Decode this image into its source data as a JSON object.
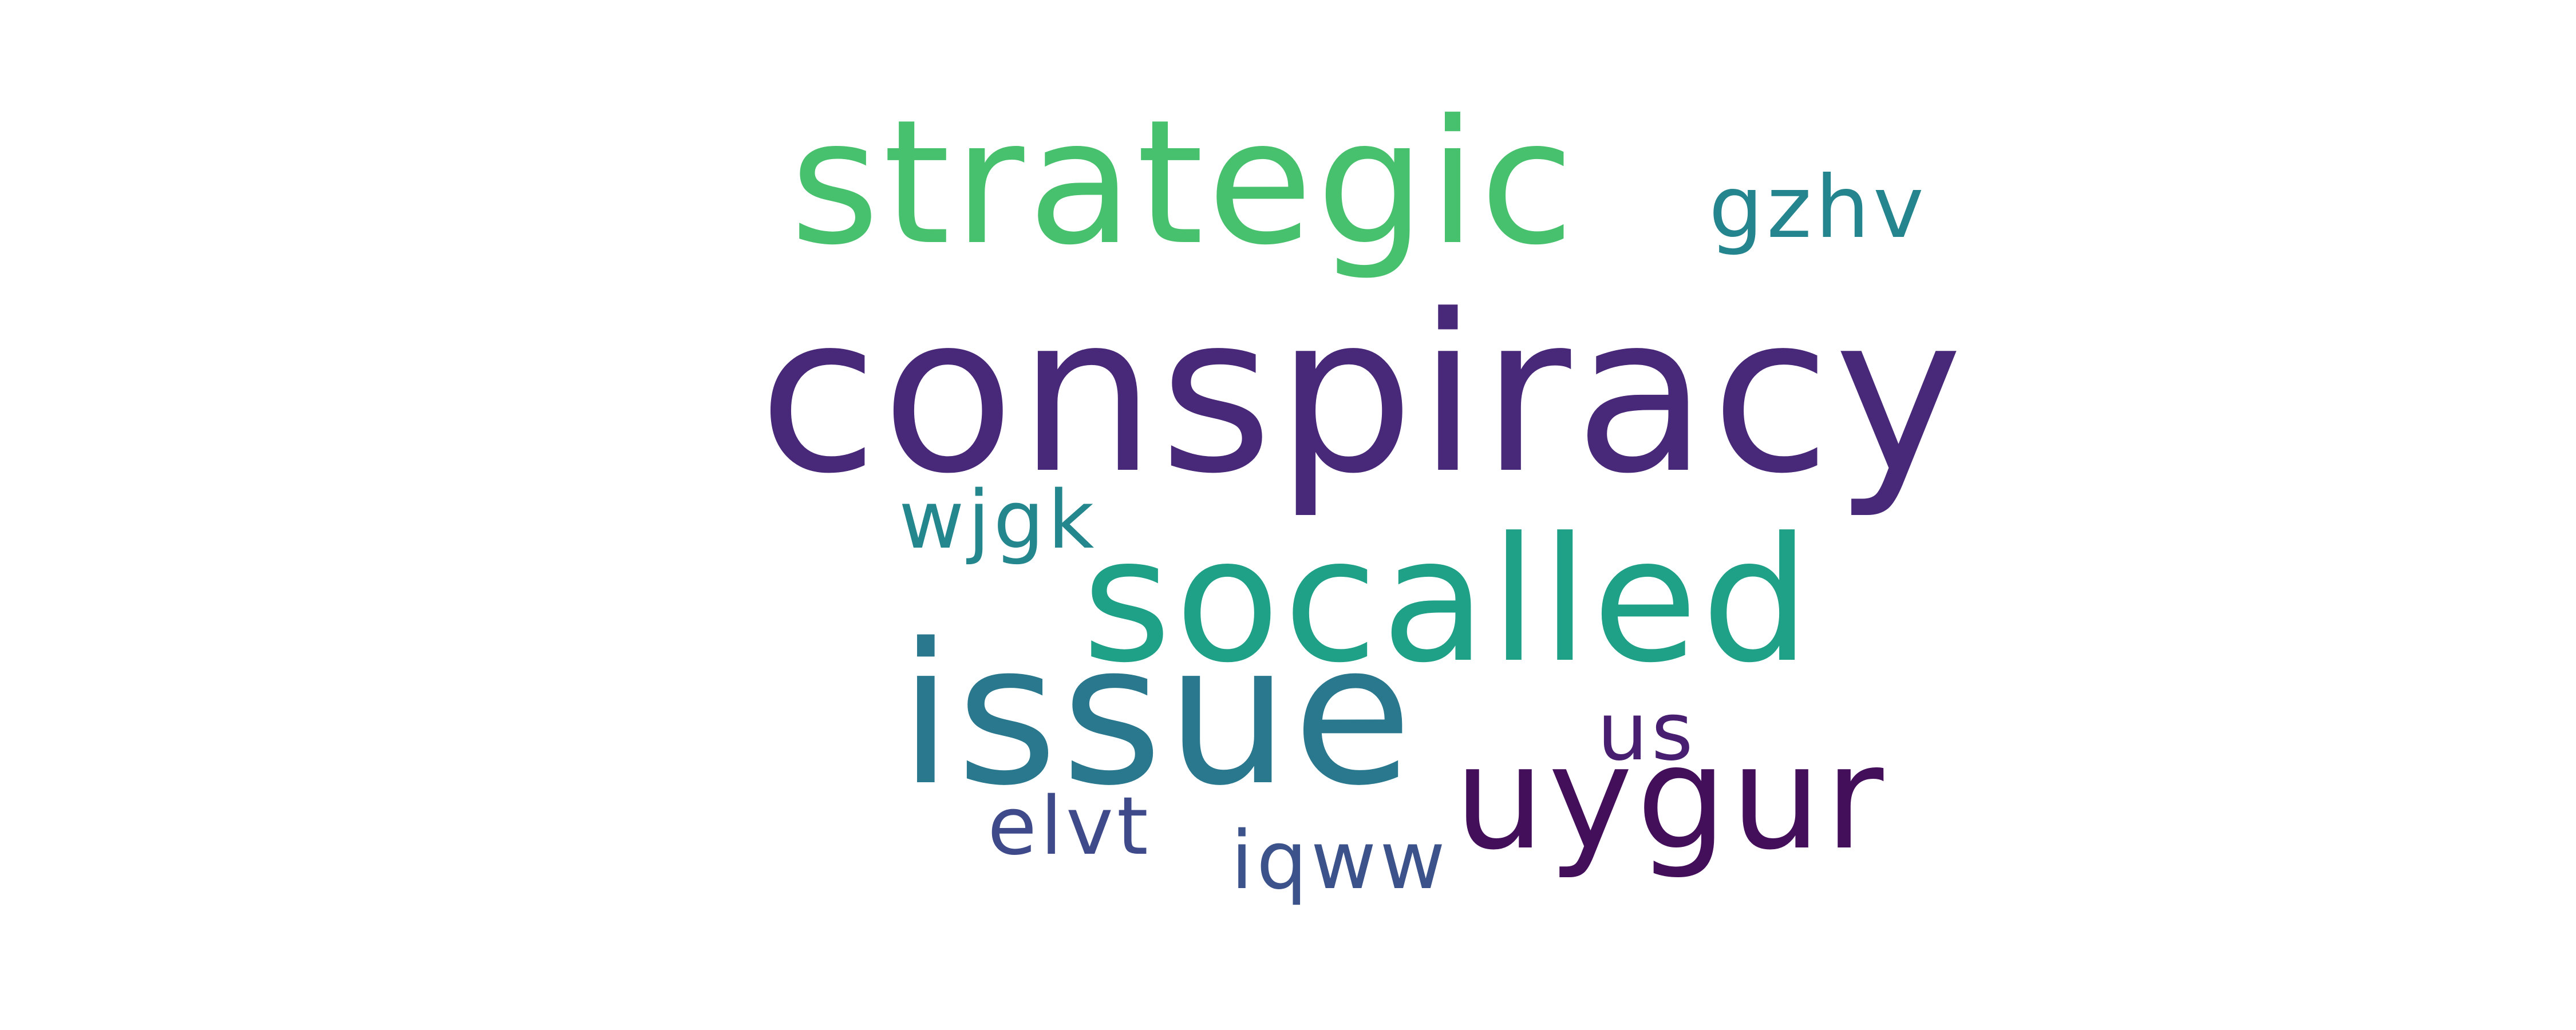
{
  "word_cloud": {
    "words": {
      "strategic": {
        "text": "strategic",
        "color": "#48c16e"
      },
      "gzhv": {
        "text": "gzhv",
        "color": "#25858e"
      },
      "conspiracy": {
        "text": "conspiracy",
        "color": "#482878"
      },
      "wjgk": {
        "text": "wjgk",
        "color": "#24878e"
      },
      "socalled": {
        "text": "socalled",
        "color": "#1fa188"
      },
      "issue": {
        "text": "issue",
        "color": "#2a788e"
      },
      "us": {
        "text": "us",
        "color": "#481f70"
      },
      "uygur": {
        "text": "uygur",
        "color": "#440f5a"
      },
      "elvt": {
        "text": "elvt",
        "color": "#3e4a89"
      },
      "iqww": {
        "text": "iqww",
        "color": "#3b528b"
      }
    }
  }
}
